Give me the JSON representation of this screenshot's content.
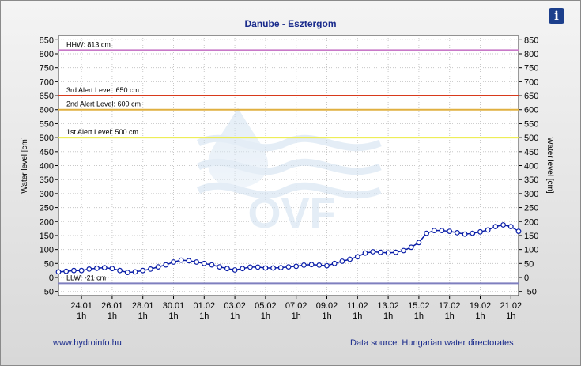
{
  "header": {
    "title": "Danube - Esztergom",
    "info_icon": "info-icon"
  },
  "footer": {
    "website": "www.hydroinfo.hu",
    "source": "Data source: Hungarian water directorates"
  },
  "watermark": {
    "text": "OVF"
  },
  "chart_data": {
    "type": "line",
    "title": "Danube - Esztergom",
    "ylabel": "Water level [cm]",
    "ylabel_right": "Water level [cm]",
    "ylim": [
      -65,
      865
    ],
    "yticks": [
      -50,
      0,
      50,
      100,
      150,
      200,
      250,
      300,
      350,
      400,
      450,
      500,
      550,
      600,
      650,
      700,
      750,
      800,
      850
    ],
    "xlim": [
      0,
      30
    ],
    "xticks": [
      {
        "x": 1.5,
        "date": "24.01",
        "hour": "1h"
      },
      {
        "x": 3.5,
        "date": "26.01",
        "hour": "1h"
      },
      {
        "x": 5.5,
        "date": "28.01",
        "hour": "1h"
      },
      {
        "x": 7.5,
        "date": "30.01",
        "hour": "1h"
      },
      {
        "x": 9.5,
        "date": "01.02",
        "hour": "1h"
      },
      {
        "x": 11.5,
        "date": "03.02",
        "hour": "1h"
      },
      {
        "x": 13.5,
        "date": "05.02",
        "hour": "1h"
      },
      {
        "x": 15.5,
        "date": "07.02",
        "hour": "1h"
      },
      {
        "x": 17.5,
        "date": "09.02",
        "hour": "1h"
      },
      {
        "x": 19.5,
        "date": "11.02",
        "hour": "1h"
      },
      {
        "x": 21.5,
        "date": "13.02",
        "hour": "1h"
      },
      {
        "x": 23.5,
        "date": "15.02",
        "hour": "1h"
      },
      {
        "x": 25.5,
        "date": "17.02",
        "hour": "1h"
      },
      {
        "x": 27.5,
        "date": "19.02",
        "hour": "1h"
      },
      {
        "x": 29.5,
        "date": "21.02",
        "hour": "1h"
      }
    ],
    "reference_lines": [
      {
        "label": "HHW: 813 cm",
        "value": 813,
        "color": "#c879c8"
      },
      {
        "label": "3rd Alert Level: 650 cm",
        "value": 650,
        "color": "#d83a1c"
      },
      {
        "label": "2nd Alert Level: 600 cm",
        "value": 600,
        "color": "#e0b040"
      },
      {
        "label": "1st Alert Level: 500 cm",
        "value": 500,
        "color": "#ecec40"
      },
      {
        "label": "LLW: -21 cm",
        "value": -21,
        "color": "#7f7fbf"
      }
    ],
    "series": [
      {
        "color": "#0a1ea8",
        "marker": "circle",
        "points": [
          [
            0.0,
            20
          ],
          [
            0.5,
            22
          ],
          [
            1.0,
            25
          ],
          [
            1.5,
            25
          ],
          [
            2.0,
            30
          ],
          [
            2.5,
            33
          ],
          [
            3.0,
            35
          ],
          [
            3.5,
            32
          ],
          [
            4.0,
            25
          ],
          [
            4.5,
            18
          ],
          [
            5.0,
            20
          ],
          [
            5.5,
            25
          ],
          [
            6.0,
            30
          ],
          [
            6.5,
            38
          ],
          [
            7.0,
            45
          ],
          [
            7.5,
            55
          ],
          [
            8.0,
            62
          ],
          [
            8.5,
            60
          ],
          [
            9.0,
            55
          ],
          [
            9.5,
            50
          ],
          [
            10.0,
            45
          ],
          [
            10.5,
            38
          ],
          [
            11.0,
            32
          ],
          [
            11.5,
            27
          ],
          [
            12.0,
            32
          ],
          [
            12.5,
            37
          ],
          [
            13.0,
            37
          ],
          [
            13.5,
            34
          ],
          [
            14.0,
            34
          ],
          [
            14.5,
            35
          ],
          [
            15.0,
            38
          ],
          [
            15.5,
            40
          ],
          [
            16.0,
            44
          ],
          [
            16.5,
            46
          ],
          [
            17.0,
            44
          ],
          [
            17.5,
            42
          ],
          [
            18.0,
            50
          ],
          [
            18.5,
            58
          ],
          [
            19.0,
            65
          ],
          [
            19.5,
            74
          ],
          [
            20.0,
            87
          ],
          [
            20.5,
            92
          ],
          [
            21.0,
            90
          ],
          [
            21.5,
            88
          ],
          [
            22.0,
            90
          ],
          [
            22.5,
            96
          ],
          [
            23.0,
            108
          ],
          [
            23.5,
            125
          ],
          [
            24.0,
            158
          ],
          [
            24.5,
            168
          ],
          [
            25.0,
            168
          ],
          [
            25.5,
            165
          ],
          [
            26.0,
            160
          ],
          [
            26.5,
            155
          ],
          [
            27.0,
            158
          ],
          [
            27.5,
            163
          ],
          [
            28.0,
            170
          ],
          [
            28.5,
            182
          ],
          [
            29.0,
            188
          ],
          [
            29.5,
            182
          ],
          [
            30.0,
            165
          ]
        ]
      }
    ],
    "grid": true
  }
}
